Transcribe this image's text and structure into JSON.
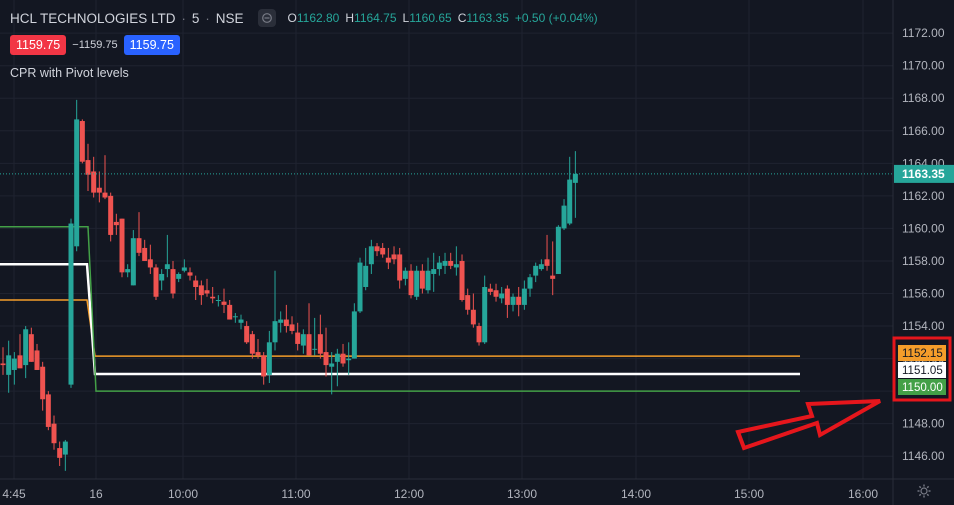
{
  "header": {
    "symbol": "HCL TECHNOLOGIES LTD",
    "interval": "5",
    "exchange": "NSE",
    "ohlc": {
      "o_label": "O",
      "o": "1162.80",
      "h_label": "H",
      "h": "1164.75",
      "l_label": "L",
      "l": "1160.65",
      "c_label": "C",
      "c": "1163.35",
      "change": "+0.50 (+0.04%)"
    }
  },
  "trade": {
    "sell_price": "1159.75",
    "spread": "−1159.75",
    "buy_price": "1159.75"
  },
  "indicator_label": "CPR with Pivot levels",
  "icons": {
    "visibility": "eye-icon",
    "settings": "gear-icon",
    "annotation": "red-arrow"
  },
  "colors": {
    "background": "#131722",
    "up": "#26a69a",
    "down": "#ef5350",
    "pivot": "#ffffff",
    "top_cpr": "#f59d2a",
    "bottom_cpr": "#43a047",
    "highlight_box": "#e5161c"
  },
  "chart_data": {
    "type": "candlestick",
    "y_range": [
      1144.6,
      1173.3
    ],
    "y_ticks": [
      "1146.00",
      "1148.00",
      "1150.00",
      "1152.00",
      "1154.00",
      "1156.00",
      "1158.00",
      "1160.00",
      "1162.00",
      "1164.00",
      "1166.00",
      "1168.00",
      "1170.00",
      "1172.00"
    ],
    "x_ticks": [
      "4:45",
      "16",
      "10:00",
      "11:00",
      "12:00",
      "13:00",
      "14:00",
      "15:00",
      "16:00"
    ],
    "last_price_label": "1163.35",
    "candles": [
      {
        "o": 1151.7,
        "h": 1152.7,
        "l": 1151.0,
        "c": 1151.6
      },
      {
        "o": 1151.0,
        "h": 1153.1,
        "l": 1149.9,
        "c": 1152.2
      },
      {
        "o": 1151.3,
        "h": 1152.4,
        "l": 1150.4,
        "c": 1152.0
      },
      {
        "o": 1152.2,
        "h": 1153.5,
        "l": 1151.6,
        "c": 1151.4
      },
      {
        "o": 1151.6,
        "h": 1154.0,
        "l": 1150.8,
        "c": 1153.8
      },
      {
        "o": 1153.5,
        "h": 1153.9,
        "l": 1151.8,
        "c": 1151.8
      },
      {
        "o": 1152.5,
        "h": 1152.9,
        "l": 1151.3,
        "c": 1151.3
      },
      {
        "o": 1151.5,
        "h": 1151.8,
        "l": 1148.8,
        "c": 1149.5
      },
      {
        "o": 1149.8,
        "h": 1150.0,
        "l": 1147.6,
        "c": 1147.8
      },
      {
        "o": 1148.0,
        "h": 1148.5,
        "l": 1146.4,
        "c": 1146.8
      },
      {
        "o": 1146.5,
        "h": 1146.9,
        "l": 1145.4,
        "c": 1145.9
      },
      {
        "o": 1146.1,
        "h": 1147.0,
        "l": 1145.1,
        "c": 1146.9
      },
      {
        "o": 1150.4,
        "h": 1160.6,
        "l": 1150.2,
        "c": 1160.3
      },
      {
        "o": 1158.9,
        "h": 1167.9,
        "l": 1158.6,
        "c": 1166.7
      },
      {
        "o": 1166.6,
        "h": 1166.7,
        "l": 1164.0,
        "c": 1164.1
      },
      {
        "o": 1164.2,
        "h": 1165.2,
        "l": 1162.3,
        "c": 1163.3
      },
      {
        "o": 1163.5,
        "h": 1164.4,
        "l": 1161.9,
        "c": 1162.2
      },
      {
        "o": 1162.5,
        "h": 1163.5,
        "l": 1161.6,
        "c": 1162.2
      },
      {
        "o": 1162.2,
        "h": 1164.5,
        "l": 1161.8,
        "c": 1161.9
      },
      {
        "o": 1162.0,
        "h": 1162.2,
        "l": 1159.2,
        "c": 1159.6
      },
      {
        "o": 1160.4,
        "h": 1160.9,
        "l": 1159.6,
        "c": 1160.2
      },
      {
        "o": 1160.6,
        "h": 1160.6,
        "l": 1157.0,
        "c": 1157.3
      },
      {
        "o": 1157.3,
        "h": 1157.8,
        "l": 1157.0,
        "c": 1157.5
      },
      {
        "o": 1156.5,
        "h": 1159.9,
        "l": 1156.5,
        "c": 1159.4
      },
      {
        "o": 1159.4,
        "h": 1161.0,
        "l": 1158.3,
        "c": 1158.5
      },
      {
        "o": 1158.8,
        "h": 1159.3,
        "l": 1158.0,
        "c": 1158.0
      },
      {
        "o": 1158.1,
        "h": 1159.0,
        "l": 1157.2,
        "c": 1157.6
      },
      {
        "o": 1157.6,
        "h": 1157.8,
        "l": 1155.6,
        "c": 1155.8
      },
      {
        "o": 1156.8,
        "h": 1157.5,
        "l": 1156.2,
        "c": 1157.2
      },
      {
        "o": 1157.5,
        "h": 1159.6,
        "l": 1157.0,
        "c": 1157.8
      },
      {
        "o": 1157.5,
        "h": 1158.0,
        "l": 1155.7,
        "c": 1156.0
      },
      {
        "o": 1156.9,
        "h": 1157.3,
        "l": 1156.7,
        "c": 1157.2
      },
      {
        "o": 1157.4,
        "h": 1158.1,
        "l": 1157.3,
        "c": 1157.6
      },
      {
        "o": 1157.3,
        "h": 1157.6,
        "l": 1156.8,
        "c": 1157.1
      },
      {
        "o": 1156.8,
        "h": 1157.1,
        "l": 1155.6,
        "c": 1156.4
      },
      {
        "o": 1156.5,
        "h": 1156.8,
        "l": 1155.3,
        "c": 1155.9
      },
      {
        "o": 1156.2,
        "h": 1156.9,
        "l": 1155.8,
        "c": 1156.0
      },
      {
        "o": 1155.8,
        "h": 1156.4,
        "l": 1155.4,
        "c": 1155.7
      },
      {
        "o": 1155.6,
        "h": 1155.9,
        "l": 1155.2,
        "c": 1155.6
      },
      {
        "o": 1155.5,
        "h": 1156.3,
        "l": 1154.8,
        "c": 1155.3
      },
      {
        "o": 1155.3,
        "h": 1155.6,
        "l": 1154.4,
        "c": 1154.4
      },
      {
        "o": 1154.6,
        "h": 1154.8,
        "l": 1154.2,
        "c": 1154.6
      },
      {
        "o": 1154.2,
        "h": 1154.7,
        "l": 1153.8,
        "c": 1154.4
      },
      {
        "o": 1154.0,
        "h": 1154.3,
        "l": 1152.9,
        "c": 1153.0
      },
      {
        "o": 1153.5,
        "h": 1153.7,
        "l": 1152.0,
        "c": 1152.3
      },
      {
        "o": 1152.4,
        "h": 1153.2,
        "l": 1152.0,
        "c": 1152.2
      },
      {
        "o": 1152.2,
        "h": 1152.4,
        "l": 1150.4,
        "c": 1150.9
      },
      {
        "o": 1151.0,
        "h": 1153.7,
        "l": 1150.5,
        "c": 1153.0
      },
      {
        "o": 1153.0,
        "h": 1157.4,
        "l": 1152.5,
        "c": 1154.3
      },
      {
        "o": 1154.2,
        "h": 1154.9,
        "l": 1153.6,
        "c": 1154.4
      },
      {
        "o": 1154.4,
        "h": 1155.3,
        "l": 1153.6,
        "c": 1154.0
      },
      {
        "o": 1154.1,
        "h": 1154.6,
        "l": 1153.5,
        "c": 1153.7
      },
      {
        "o": 1153.6,
        "h": 1154.2,
        "l": 1152.5,
        "c": 1152.9
      },
      {
        "o": 1152.8,
        "h": 1153.8,
        "l": 1152.3,
        "c": 1153.5
      },
      {
        "o": 1153.5,
        "h": 1155.4,
        "l": 1152.2,
        "c": 1152.2
      },
      {
        "o": 1152.6,
        "h": 1154.5,
        "l": 1152.2,
        "c": 1152.6
      },
      {
        "o": 1153.5,
        "h": 1154.7,
        "l": 1152.0,
        "c": 1152.3
      },
      {
        "o": 1152.4,
        "h": 1153.9,
        "l": 1150.9,
        "c": 1151.6
      },
      {
        "o": 1151.5,
        "h": 1152.4,
        "l": 1149.8,
        "c": 1151.7
      },
      {
        "o": 1151.8,
        "h": 1152.6,
        "l": 1150.3,
        "c": 1152.3
      },
      {
        "o": 1152.3,
        "h": 1152.9,
        "l": 1151.5,
        "c": 1151.7
      },
      {
        "o": 1151.9,
        "h": 1153.0,
        "l": 1151.0,
        "c": 1152.0
      },
      {
        "o": 1152.0,
        "h": 1155.4,
        "l": 1152.0,
        "c": 1154.9
      },
      {
        "o": 1154.9,
        "h": 1158.2,
        "l": 1154.8,
        "c": 1157.9
      },
      {
        "o": 1156.4,
        "h": 1158.8,
        "l": 1156.2,
        "c": 1157.7
      },
      {
        "o": 1157.8,
        "h": 1159.3,
        "l": 1157.2,
        "c": 1158.9
      },
      {
        "o": 1158.9,
        "h": 1159.1,
        "l": 1158.3,
        "c": 1158.6
      },
      {
        "o": 1158.8,
        "h": 1159.1,
        "l": 1158.2,
        "c": 1158.4
      },
      {
        "o": 1158.2,
        "h": 1158.8,
        "l": 1157.5,
        "c": 1157.9
      },
      {
        "o": 1158.4,
        "h": 1158.9,
        "l": 1157.8,
        "c": 1158.1
      },
      {
        "o": 1158.4,
        "h": 1158.8,
        "l": 1156.3,
        "c": 1156.8
      },
      {
        "o": 1156.9,
        "h": 1157.6,
        "l": 1156.5,
        "c": 1157.4
      },
      {
        "o": 1157.4,
        "h": 1157.8,
        "l": 1155.7,
        "c": 1155.9
      },
      {
        "o": 1155.8,
        "h": 1157.7,
        "l": 1155.6,
        "c": 1157.4
      },
      {
        "o": 1157.4,
        "h": 1157.8,
        "l": 1156.0,
        "c": 1156.3
      },
      {
        "o": 1156.2,
        "h": 1158.2,
        "l": 1156.0,
        "c": 1157.4
      },
      {
        "o": 1157.2,
        "h": 1158.5,
        "l": 1156.1,
        "c": 1157.5
      },
      {
        "o": 1157.5,
        "h": 1158.3,
        "l": 1157.1,
        "c": 1157.9
      },
      {
        "o": 1157.7,
        "h": 1158.5,
        "l": 1157.2,
        "c": 1158.0
      },
      {
        "o": 1158.0,
        "h": 1158.5,
        "l": 1157.5,
        "c": 1157.7
      },
      {
        "o": 1157.6,
        "h": 1158.9,
        "l": 1157.1,
        "c": 1157.8
      },
      {
        "o": 1158.0,
        "h": 1158.4,
        "l": 1155.5,
        "c": 1155.6
      },
      {
        "o": 1155.9,
        "h": 1156.3,
        "l": 1154.7,
        "c": 1155.0
      },
      {
        "o": 1155.0,
        "h": 1156.0,
        "l": 1153.9,
        "c": 1154.1
      },
      {
        "o": 1154.0,
        "h": 1154.2,
        "l": 1152.8,
        "c": 1153.0
      },
      {
        "o": 1153.0,
        "h": 1157.1,
        "l": 1152.9,
        "c": 1156.4
      },
      {
        "o": 1156.3,
        "h": 1156.6,
        "l": 1155.9,
        "c": 1156.1
      },
      {
        "o": 1156.2,
        "h": 1156.6,
        "l": 1155.5,
        "c": 1155.8
      },
      {
        "o": 1155.7,
        "h": 1156.4,
        "l": 1155.4,
        "c": 1156.0
      },
      {
        "o": 1156.3,
        "h": 1156.5,
        "l": 1154.5,
        "c": 1155.3
      },
      {
        "o": 1155.3,
        "h": 1156.0,
        "l": 1154.9,
        "c": 1155.8
      },
      {
        "o": 1155.8,
        "h": 1156.4,
        "l": 1154.6,
        "c": 1155.3
      },
      {
        "o": 1155.3,
        "h": 1156.8,
        "l": 1155.0,
        "c": 1156.3
      },
      {
        "o": 1156.3,
        "h": 1157.2,
        "l": 1155.8,
        "c": 1157.0
      },
      {
        "o": 1157.1,
        "h": 1157.9,
        "l": 1156.7,
        "c": 1157.7
      },
      {
        "o": 1157.5,
        "h": 1158.1,
        "l": 1157.4,
        "c": 1157.8
      },
      {
        "o": 1158.1,
        "h": 1159.6,
        "l": 1157.4,
        "c": 1157.7
      },
      {
        "o": 1157.1,
        "h": 1159.2,
        "l": 1155.9,
        "c": 1156.9
      },
      {
        "o": 1157.2,
        "h": 1160.2,
        "l": 1157.2,
        "c": 1160.1
      },
      {
        "o": 1160.0,
        "h": 1161.8,
        "l": 1159.9,
        "c": 1161.4
      },
      {
        "o": 1160.3,
        "h": 1164.4,
        "l": 1160.2,
        "c": 1163.0
      },
      {
        "o": 1162.8,
        "h": 1164.75,
        "l": 1160.65,
        "c": 1163.35
      }
    ],
    "series": [
      {
        "name": "1152.15",
        "values": [
          1155.6,
          1152.15
        ]
      },
      {
        "name": "1151.05",
        "values": [
          1157.8,
          1151.05
        ]
      },
      {
        "name": "1150.00",
        "values": [
          1160.1,
          1150.0
        ]
      }
    ]
  }
}
